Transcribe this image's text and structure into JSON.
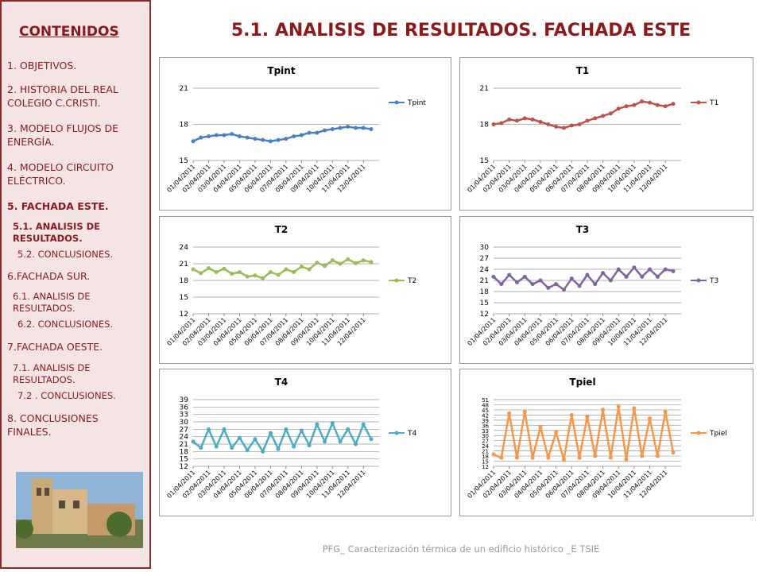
{
  "header": {
    "title": "5.1. ANALISIS DE RESULTADOS. FACHADA ESTE"
  },
  "sidebar": {
    "heading": "CONTENIDOS",
    "items": [
      "1. OBJETIVOS.",
      "2. HISTORIA DEL REAL\n COLEGIO C.CRISTI.",
      "3. MODELO FLUJOS DE\n ENERGÍA.",
      "4. MODELO CIRCUITO\n ELÉCTRICO.",
      "5. FACHADA ESTE.",
      "5.1. ANALISIS DE\nRESULTADOS.",
      "5.2. CONCLUSIONES.",
      "6.FACHADA SUR.",
      "6.1. ANALISIS DE\nRESULTADOS.",
      "6.2. CONCLUSIONES.",
      "7.FACHADA OESTE.",
      "7.1. ANALISIS DE\nRESULTADOS.",
      "7.2 . CONCLUSIONES.",
      "8. CONCLUSIONES\n FINALES."
    ]
  },
  "footer": {
    "text": "PFG_ Caracterización térmica de un edificio histórico _E TSIE"
  },
  "chart_data": [
    {
      "type": "line",
      "title": "Tpint",
      "legend": "top-right",
      "grid": true,
      "ylim": [
        15,
        21
      ],
      "yticks": [
        15,
        18,
        21
      ],
      "categories": [
        "01/04/2011",
        null,
        "02/04/2011",
        null,
        "03/04/2011",
        null,
        "04/04/2011",
        null,
        "05/04/2011",
        null,
        "06/04/2011",
        null,
        "07/04/2011",
        null,
        "08/04/2011",
        null,
        "09/04/2011",
        null,
        "10/04/2011",
        null,
        "11/04/2011",
        null,
        "12/04/2011",
        null
      ],
      "series": [
        {
          "name": "Tpint",
          "color": "#4a7fc1",
          "values": [
            16.6,
            16.9,
            17.0,
            17.1,
            17.1,
            17.2,
            17.0,
            16.9,
            16.8,
            16.7,
            16.6,
            16.7,
            16.8,
            17.0,
            17.1,
            17.3,
            17.3,
            17.5,
            17.6,
            17.7,
            17.8,
            17.7,
            17.7,
            17.6
          ]
        }
      ]
    },
    {
      "type": "line",
      "title": "T1",
      "legend": "top-right",
      "grid": true,
      "ylim": [
        15,
        21
      ],
      "yticks": [
        15,
        18,
        21
      ],
      "categories": [
        "01/04/2011",
        null,
        "02/04/2011",
        null,
        "03/04/2011",
        null,
        "04/04/2011",
        null,
        "05/04/2011",
        null,
        "06/04/2011",
        null,
        "07/04/2011",
        null,
        "08/04/2011",
        null,
        "09/04/2011",
        null,
        "10/04/2011",
        null,
        "11/04/2011",
        null,
        "12/04/2011",
        null
      ],
      "series": [
        {
          "name": "T1",
          "color": "#c0504d",
          "values": [
            18.0,
            18.1,
            18.4,
            18.3,
            18.5,
            18.4,
            18.2,
            18.0,
            17.8,
            17.7,
            17.9,
            18.0,
            18.3,
            18.5,
            18.7,
            18.9,
            19.3,
            19.5,
            19.6,
            19.9,
            19.8,
            19.6,
            19.5,
            19.7
          ]
        }
      ]
    },
    {
      "type": "line",
      "title": "T2",
      "legend": "right",
      "grid": true,
      "ylim": [
        12,
        24
      ],
      "yticks": [
        12,
        15,
        18,
        21,
        24
      ],
      "categories": [
        "01/04/2011",
        null,
        "02/04/2011",
        null,
        "03/04/2011",
        null,
        "04/04/2011",
        null,
        "05/04/2011",
        null,
        "06/04/2011",
        null,
        "07/04/2011",
        null,
        "08/04/2011",
        null,
        "09/04/2011",
        null,
        "10/04/2011",
        null,
        "11/04/2011",
        null,
        "12/04/2011",
        null
      ],
      "series": [
        {
          "name": "T2",
          "color": "#9bbb59",
          "values": [
            20.0,
            19.3,
            20.2,
            19.5,
            20.1,
            19.2,
            19.5,
            18.7,
            18.9,
            18.4,
            19.5,
            19.0,
            20.0,
            19.5,
            20.5,
            20.0,
            21.2,
            20.6,
            21.6,
            21.0,
            21.8,
            21.1,
            21.6,
            21.3
          ]
        }
      ]
    },
    {
      "type": "line",
      "title": "T3",
      "legend": "right",
      "grid": true,
      "ylim": [
        12,
        30
      ],
      "yticks": [
        12,
        15,
        18,
        21,
        24,
        27,
        30
      ],
      "categories": [
        "01/04/2011",
        null,
        "02/04/2011",
        null,
        "03/04/2011",
        null,
        "04/04/2011",
        null,
        "05/04/2011",
        null,
        "06/04/2011",
        null,
        "07/04/2011",
        null,
        "08/04/2011",
        null,
        "09/04/2011",
        null,
        "10/04/2011",
        null,
        "11/04/2011",
        null,
        "12/04/2011",
        null
      ],
      "series": [
        {
          "name": "T3",
          "color": "#8064a2",
          "values": [
            22,
            20,
            22.5,
            20.5,
            22,
            20,
            21,
            19,
            20,
            18.5,
            21.5,
            19.5,
            22.5,
            20,
            23,
            21,
            24,
            22,
            24.5,
            22,
            24,
            22,
            24,
            23.5
          ]
        }
      ]
    },
    {
      "type": "line",
      "title": "T4",
      "legend": "right",
      "grid": true,
      "ylim": [
        12,
        39
      ],
      "yticks": [
        12,
        15,
        18,
        21,
        24,
        27,
        30,
        33,
        36,
        39
      ],
      "categories": [
        "01/04/2011",
        null,
        "02/04/2011",
        null,
        "03/04/2011",
        null,
        "04/04/2011",
        null,
        "05/04/2011",
        null,
        "06/04/2011",
        null,
        "07/04/2011",
        null,
        "08/04/2011",
        null,
        "09/04/2011",
        null,
        "10/04/2011",
        null,
        "11/04/2011",
        null,
        "12/04/2011",
        null
      ],
      "series": [
        {
          "name": "T4",
          "color": "#4bacc6",
          "values": [
            22,
            19.5,
            27,
            20,
            27,
            19.5,
            23.5,
            18.5,
            23,
            18,
            25.5,
            19,
            27,
            20,
            26.5,
            20.5,
            29,
            22,
            29.5,
            22,
            27,
            21,
            29,
            23
          ]
        }
      ]
    },
    {
      "type": "line",
      "title": "Tpiel",
      "legend": "right",
      "grid": true,
      "ylim": [
        12,
        51
      ],
      "yticks": [
        12,
        15,
        18,
        21,
        24,
        27,
        30,
        33,
        36,
        39,
        42,
        45,
        48,
        51
      ],
      "categories": [
        "01/04/2011",
        null,
        "02/04/2011",
        null,
        "03/04/2011",
        null,
        "04/04/2011",
        null,
        "05/04/2011",
        null,
        "06/04/2011",
        null,
        "07/04/2011",
        null,
        "08/04/2011",
        null,
        "09/04/2011",
        null,
        "10/04/2011",
        null,
        "11/04/2011",
        null,
        "12/04/2011",
        null
      ],
      "series": [
        {
          "name": "Tpiel",
          "color": "#f79646",
          "values": [
            19,
            17,
            43,
            17,
            44,
            17,
            35,
            17,
            32,
            16,
            42,
            17,
            41,
            18,
            45,
            17,
            47,
            16,
            46,
            18,
            40,
            18,
            44,
            20
          ]
        }
      ]
    }
  ]
}
